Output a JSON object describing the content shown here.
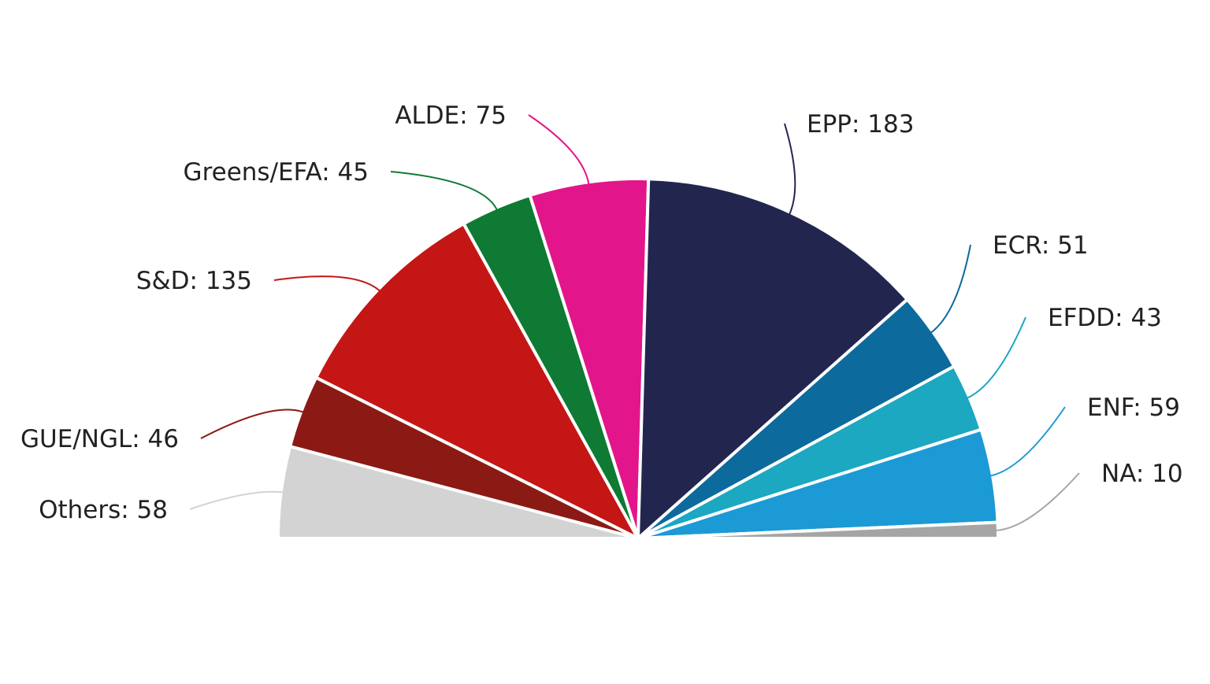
{
  "chart_data": {
    "type": "pie",
    "variant": "semicircle",
    "title": "",
    "order": "counter-clockwise from the left end of the semicircle",
    "labels_show": "name: value",
    "slice_borders": "white",
    "series": [
      {
        "name": "",
        "data": [
          {
            "name": "Others",
            "value": 58,
            "color": "#d3d3d3",
            "label": "Others: 58"
          },
          {
            "name": "GUE/NGL",
            "value": 46,
            "color": "#8b1a14",
            "label": "GUE/NGL: 46"
          },
          {
            "name": "S&D",
            "value": 135,
            "color": "#c41615",
            "label": "S&D: 135"
          },
          {
            "name": "Greens/EFA",
            "value": 45,
            "color": "#0e7a33",
            "label": "Greens/EFA: 45"
          },
          {
            "name": "ALDE",
            "value": 75,
            "color": "#e2168a",
            "label": "ALDE: 75"
          },
          {
            "name": "EPP",
            "value": 183,
            "color": "#22264f",
            "label": "EPP: 183"
          },
          {
            "name": "ECR",
            "value": 51,
            "color": "#0d6a9c",
            "label": "ECR: 51"
          },
          {
            "name": "EFDD",
            "value": 43,
            "color": "#1ba8c0",
            "label": "EFDD: 43"
          },
          {
            "name": "ENF",
            "value": 59,
            "color": "#1b9ad6",
            "label": "ENF: 59"
          },
          {
            "name": "NA",
            "value": 10,
            "color": "#a5a5a5",
            "label": "NA: 10"
          }
        ]
      }
    ]
  }
}
